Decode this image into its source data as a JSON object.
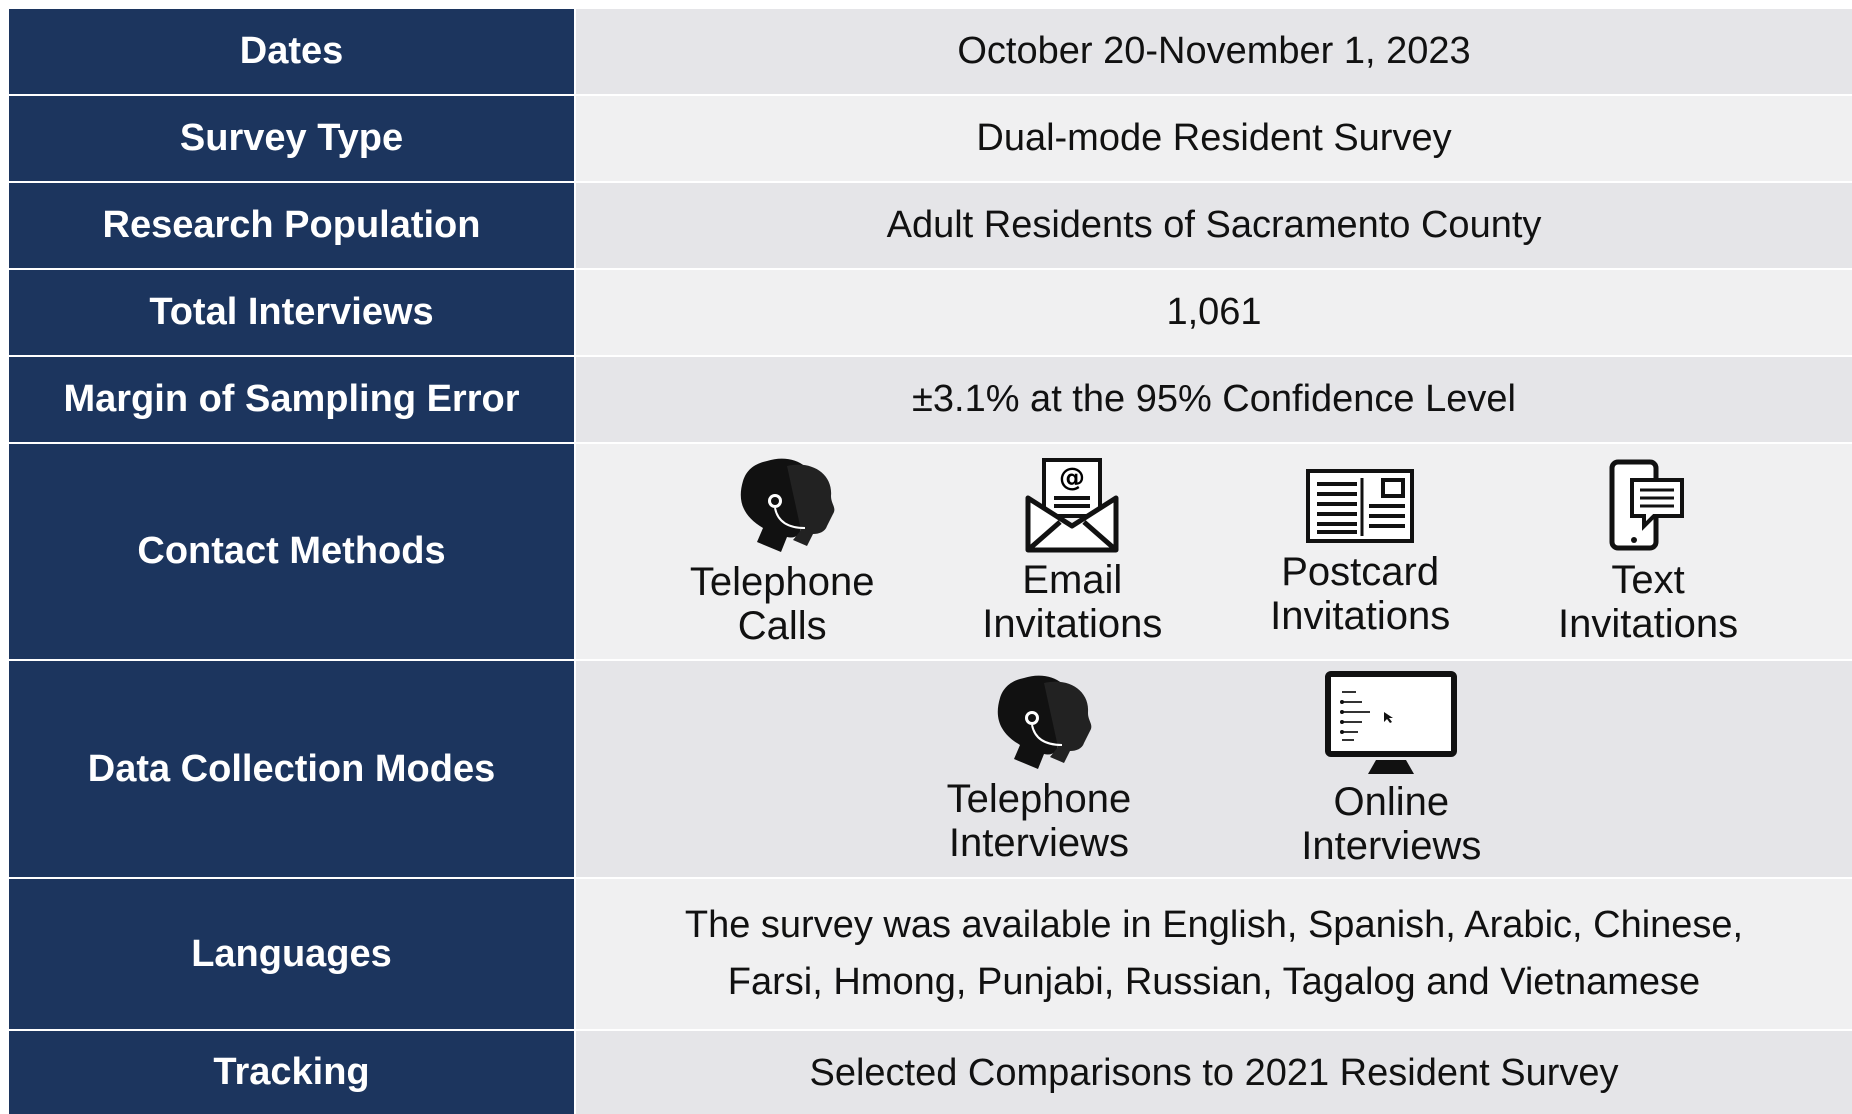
{
  "table": {
    "rows": [
      {
        "label": "Dates",
        "value": "October 20-November 1, 2023"
      },
      {
        "label": "Survey Type",
        "value": "Dual-mode Resident Survey"
      },
      {
        "label": "Research Population",
        "value": "Adult Residents of Sacramento County"
      },
      {
        "label": "Total Interviews",
        "value": "1,061"
      },
      {
        "label": "Margin of Sampling Error",
        "value": "±3.1% at the 95% Confidence Level"
      },
      {
        "label": "Contact Methods",
        "items": [
          "Telephone\nCalls",
          "Email\nInvitations",
          "Postcard\nInvitations",
          "Text\nInvitations"
        ]
      },
      {
        "label": "Data Collection Modes",
        "items": [
          "Telephone\nInterviews",
          "Online\nInterviews"
        ]
      },
      {
        "label": "Languages",
        "value": "The survey was available in English, Spanish, Arabic, Chinese,\nFarsi, Hmong, Punjabi, Russian, Tagalog and Vietnamese"
      },
      {
        "label": "Tracking",
        "value": "Selected Comparisons to 2021 Resident Survey"
      }
    ]
  }
}
